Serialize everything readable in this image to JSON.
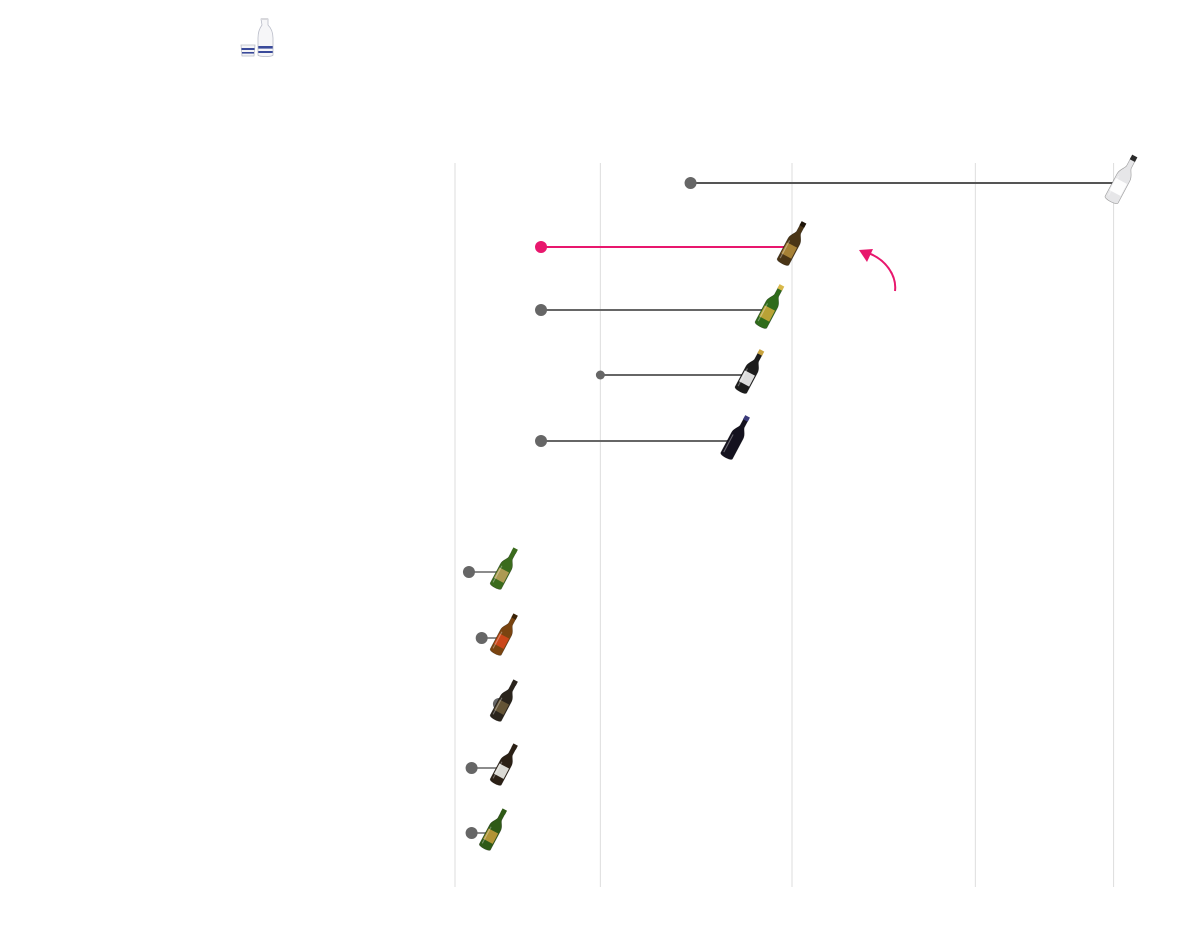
{
  "chart_data": {
    "type": "dumbbell",
    "x_scale": "log",
    "xlim": [
      1,
      100
    ],
    "grid": true,
    "gridlines_at": [
      1,
      2.7,
      10,
      35,
      90
    ],
    "colors": {
      "grid": "#dedede",
      "line": "#666666",
      "dot": "#666666",
      "highlight": "#e8176d",
      "top_line": "#555555"
    },
    "highlight_index": 1,
    "rows": [
      {
        "start": 5,
        "end": 95
      },
      {
        "start": 1.8,
        "end": 10
      },
      {
        "start": 1.8,
        "end": 8.6
      },
      {
        "start": 2.7,
        "end": 7.5
      },
      {
        "start": 1.8,
        "end": 6.8
      },
      {
        "start": 1.1,
        "end": 1.4
      },
      {
        "start": 1.2,
        "end": 1.4
      },
      {
        "start": 1.35,
        "end": 1.4
      },
      {
        "start": 1.12,
        "end": 1.4
      },
      {
        "start": 1.12,
        "end": 1.3
      }
    ],
    "bottles": [
      {
        "icon": "clear-bottle-icon",
        "body": "#e6e6e8",
        "label": "#ffffff",
        "cap": "#2a2a2a"
      },
      {
        "icon": "brown-bottle-icon",
        "body": "#4a3516",
        "label": "#b08a3a",
        "cap": "#1e1408"
      },
      {
        "icon": "green-bottle-icon",
        "body": "#2f6b1b",
        "label": "#c9a83a",
        "cap": "#d8b84a"
      },
      {
        "icon": "black-bottle-icon",
        "body": "#1c1c1c",
        "label": "#f2f2f2",
        "cap": "#c9a440"
      },
      {
        "icon": "navy-bottle-icon",
        "body": "#14121e",
        "label": "#14121e",
        "cap": "#3a3a7a"
      },
      {
        "icon": "green-bottle-icon",
        "body": "#3b6b1d",
        "label": "#b9a05a",
        "cap": "#3b6b1d"
      },
      {
        "icon": "amber-bottle-icon",
        "body": "#7a4410",
        "label": "#d4481c",
        "cap": "#3a2205"
      },
      {
        "icon": "dark-bottle-icon",
        "body": "#2a241c",
        "label": "#6a5a3a",
        "cap": "#2a241c"
      },
      {
        "icon": "dark-bottle-icon",
        "body": "#2b2015",
        "label": "#eeeeea",
        "cap": "#2b2015"
      },
      {
        "icon": "green-bottle-icon",
        "body": "#2f5a16",
        "label": "#c09a3a",
        "cap": "#2f5a16"
      }
    ]
  },
  "header": {
    "icon": "sake-set-icon"
  }
}
